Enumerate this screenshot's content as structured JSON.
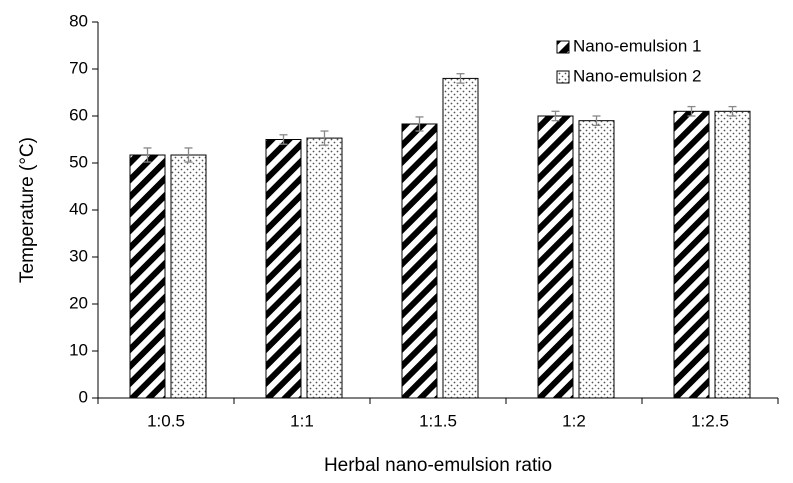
{
  "chart_data": {
    "type": "bar",
    "x_label": "Herbal nano-emulsion ratio",
    "y_label": "Temperature (°C)",
    "categories": [
      "1:0.5",
      "1:1",
      "1:1.5",
      "1:2",
      "1:2.5"
    ],
    "series": [
      {
        "name": "Nano-emulsion 1",
        "color": "#000000",
        "pattern": "hatch",
        "values": [
          51.7,
          55,
          58.3,
          60,
          61
        ],
        "errors": [
          1.5,
          1,
          1.5,
          1,
          1
        ]
      },
      {
        "name": "Nano-emulsion 2",
        "color": "#555555",
        "pattern": "dots",
        "values": [
          51.7,
          55.3,
          68,
          59,
          61
        ],
        "errors": [
          1.5,
          1.5,
          1,
          1,
          1
        ]
      }
    ],
    "ylim": [
      0,
      80
    ],
    "yticks": [
      0,
      10,
      20,
      30,
      40,
      50,
      60,
      70,
      80
    ],
    "grid": false,
    "legend": "upper right"
  }
}
